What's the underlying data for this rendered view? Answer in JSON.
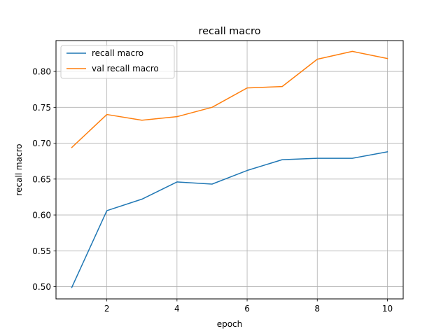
{
  "chart_data": {
    "type": "line",
    "title": "recall macro",
    "xlabel": "epoch",
    "ylabel": "recall macro",
    "x": [
      1,
      2,
      3,
      4,
      5,
      6,
      7,
      8,
      9,
      10
    ],
    "xlim": [
      0.55,
      10.45
    ],
    "ylim": [
      0.483,
      0.843
    ],
    "xticks": [
      2,
      4,
      6,
      8,
      10
    ],
    "yticks": [
      0.5,
      0.55,
      0.6,
      0.65,
      0.7,
      0.75,
      0.8
    ],
    "grid": true,
    "legend_position": "upper-left",
    "series": [
      {
        "name": "recall macro",
        "color": "#1f77b4",
        "values": [
          0.499,
          0.606,
          0.622,
          0.646,
          0.643,
          0.662,
          0.677,
          0.679,
          0.679,
          0.688
        ]
      },
      {
        "name": "val recall macro",
        "color": "#ff7f0e",
        "values": [
          0.694,
          0.74,
          0.732,
          0.737,
          0.75,
          0.777,
          0.779,
          0.817,
          0.828,
          0.818
        ]
      }
    ]
  }
}
